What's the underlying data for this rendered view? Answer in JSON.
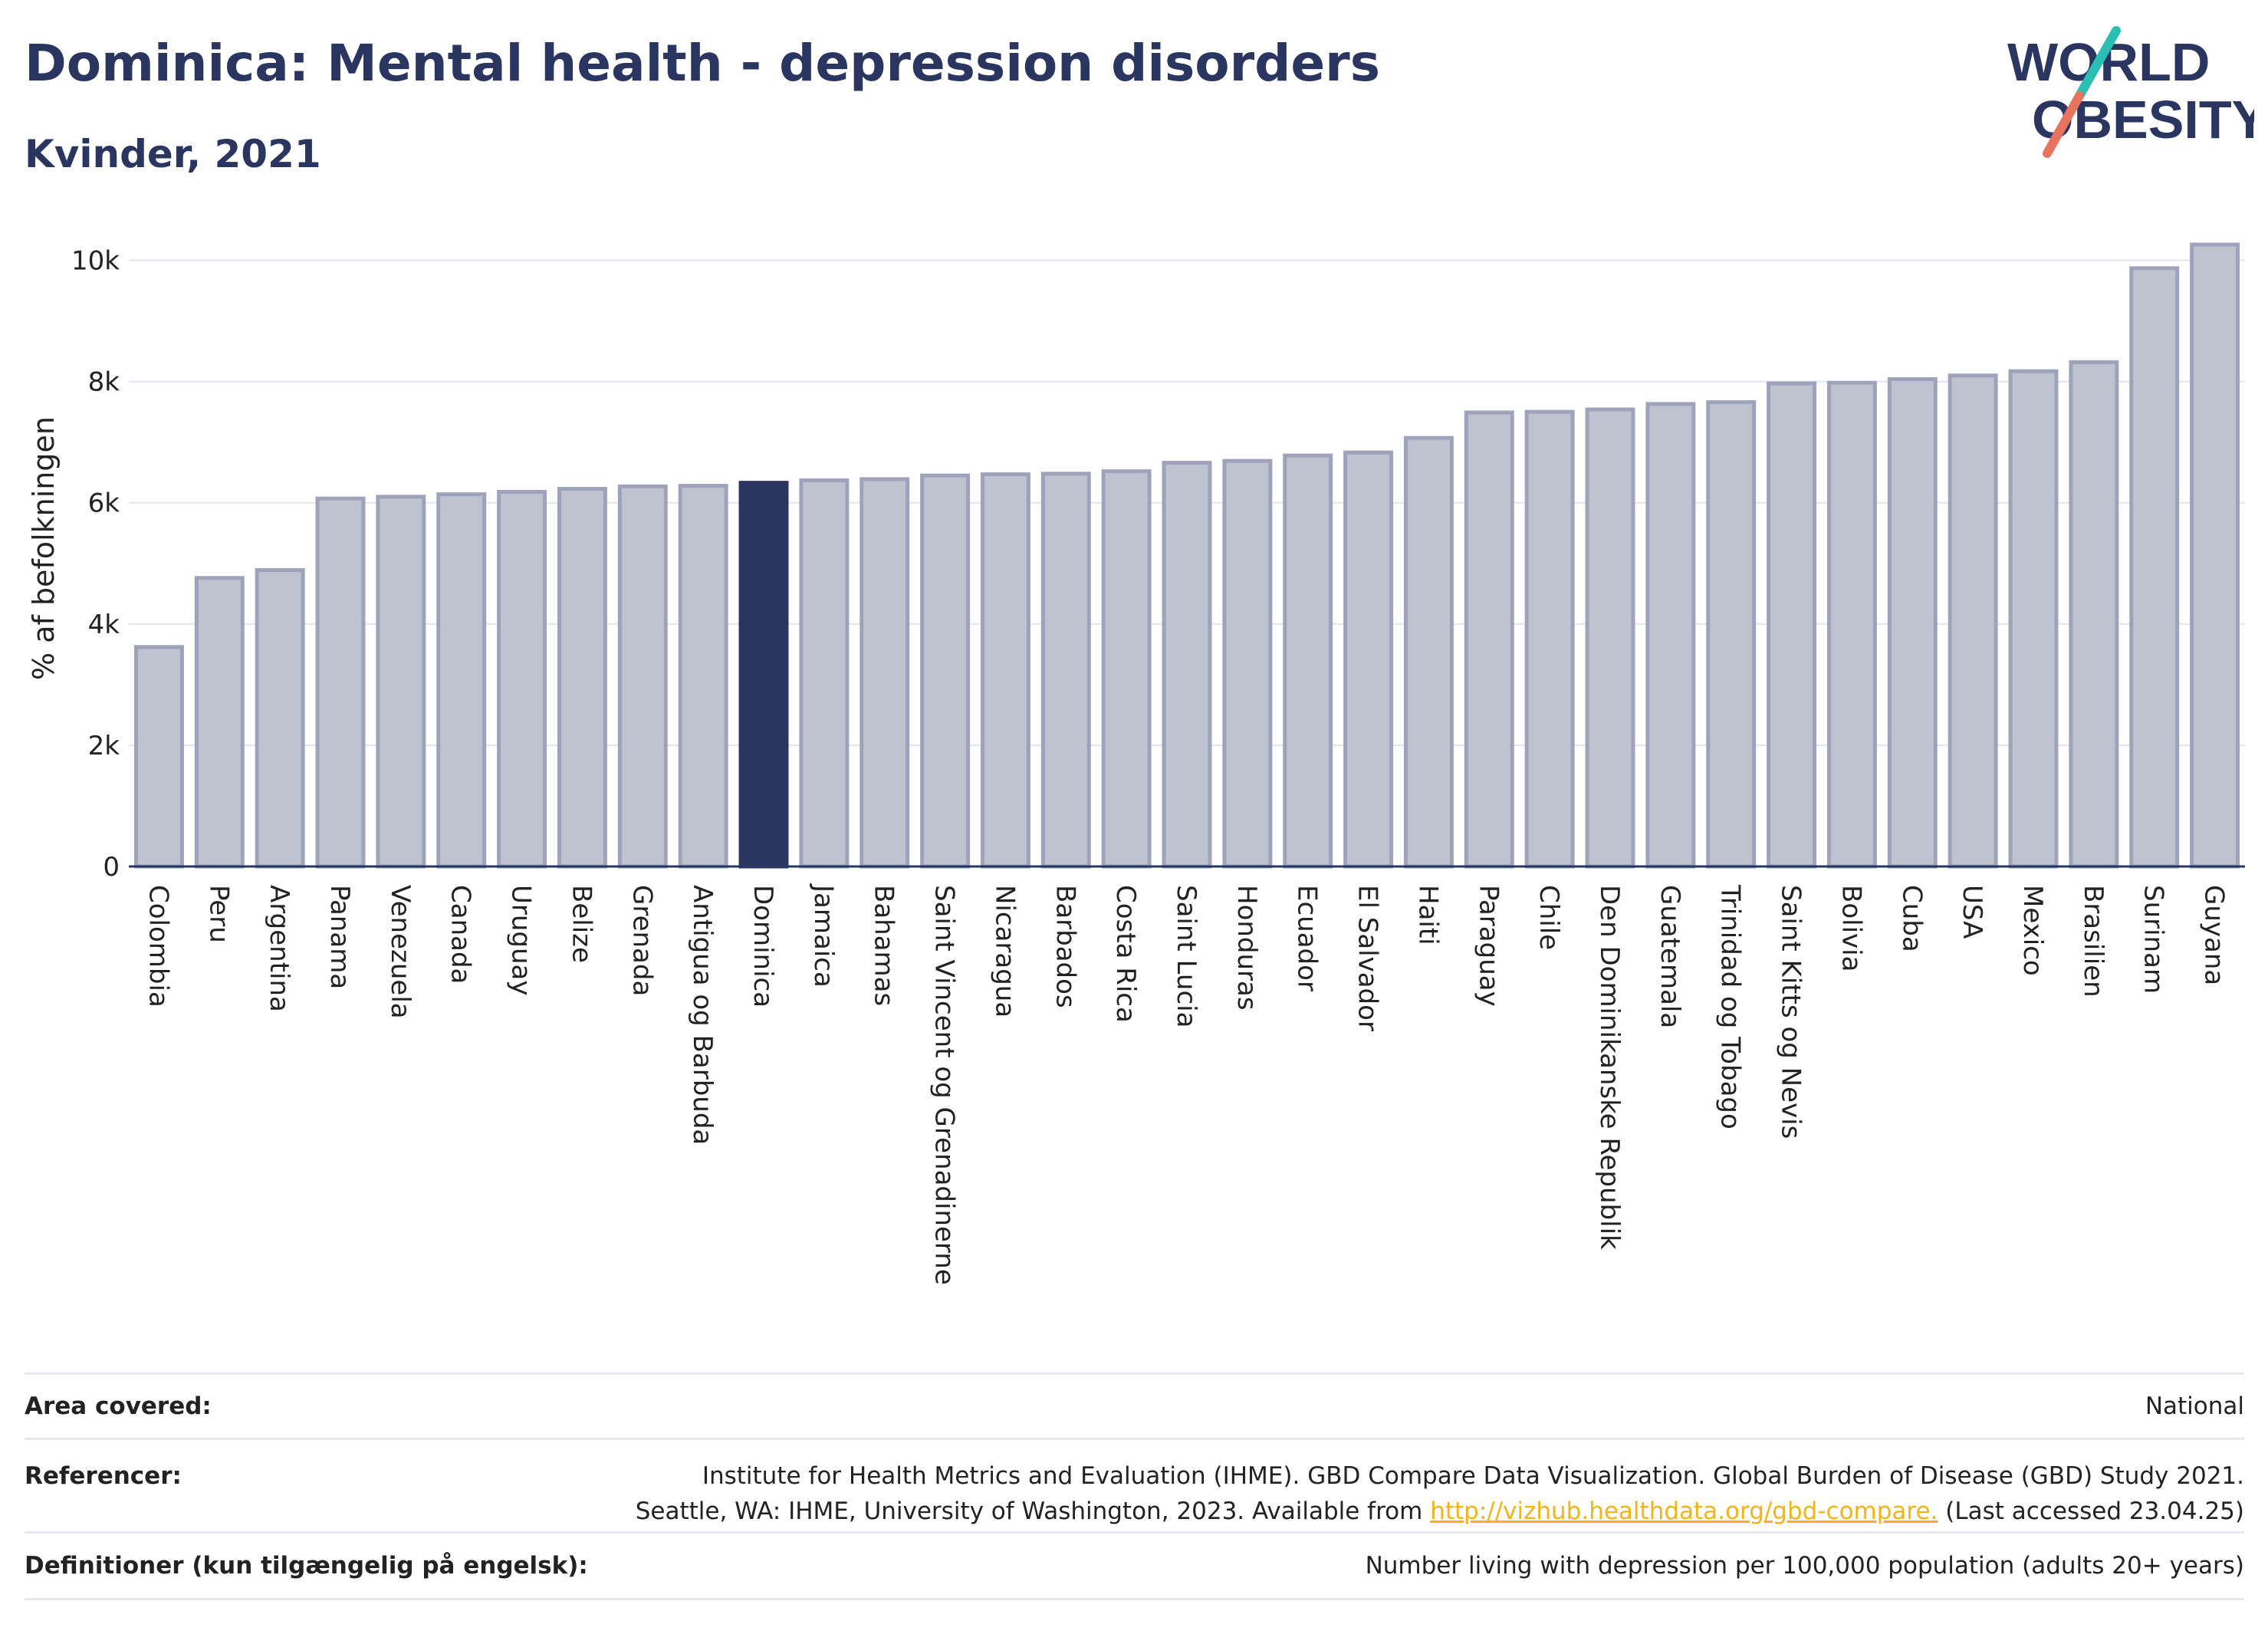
{
  "title": "Dominica: Mental health - depression disorders",
  "subtitle": "Kvinder, 2021",
  "logo": {
    "line1": "WORLD",
    "line2": "OBESITY"
  },
  "colors": {
    "bar": "#bfc3d0",
    "bar_stroke": "#9ea3bb",
    "highlight": "#2a3560",
    "grid": "#e3e5ee",
    "text": "#2a3560",
    "link": "#f2b418"
  },
  "chart_data": {
    "type": "bar",
    "ylabel": "% af befolkningen",
    "xlabel": "",
    "ylim": [
      0,
      10500
    ],
    "yticks": [
      0,
      2000,
      4000,
      6000,
      8000,
      10000
    ],
    "ytick_labels": [
      "0",
      "2k",
      "4k",
      "6k",
      "8k",
      "10k"
    ],
    "grid": true,
    "highlight": "Dominica",
    "categories": [
      "Colombia",
      "Peru",
      "Argentina",
      "Panama",
      "Venezuela",
      "Canada",
      "Uruguay",
      "Belize",
      "Grenada",
      "Antigua og Barbuda",
      "Dominica",
      "Jamaica",
      "Bahamas",
      "Saint Vincent og Grenadinerne",
      "Nicaragua",
      "Barbados",
      "Costa Rica",
      "Saint Lucia",
      "Honduras",
      "Ecuador",
      "El Salvador",
      "Haiti",
      "Paraguay",
      "Chile",
      "Den Dominikanske Republik",
      "Guatemala",
      "Trinidad og Tobago",
      "Saint Kitts og Nevis",
      "Bolivia",
      "Cuba",
      "USA",
      "Mexico",
      "Brasilien",
      "Surinam",
      "Guyana"
    ],
    "values": [
      3620,
      4760,
      4890,
      6070,
      6100,
      6140,
      6180,
      6230,
      6270,
      6280,
      6330,
      6370,
      6390,
      6450,
      6470,
      6480,
      6520,
      6660,
      6690,
      6780,
      6830,
      7070,
      7490,
      7500,
      7540,
      7630,
      7660,
      7970,
      7980,
      8040,
      8100,
      8170,
      8320,
      9870,
      10260
    ]
  },
  "footer": {
    "area_label": "Area covered:",
    "area_value": "National",
    "ref_label": "Referencer:",
    "ref_line1": "Institute for Health Metrics and Evaluation (IHME). GBD Compare Data Visualization. Global Burden of Disease (GBD) Study 2021.",
    "ref_line2_pre": "Seattle, WA: IHME, University of Washington, 2023. Available from ",
    "ref_link": "http://vizhub.healthdata.org/gbd-compare.",
    "ref_line2_post": " (Last accessed 23.04.25)",
    "def_label": "Definitioner (kun tilgængelig på engelsk):",
    "def_value": "Number living with depression per 100,000 population (adults 20+ years)"
  }
}
